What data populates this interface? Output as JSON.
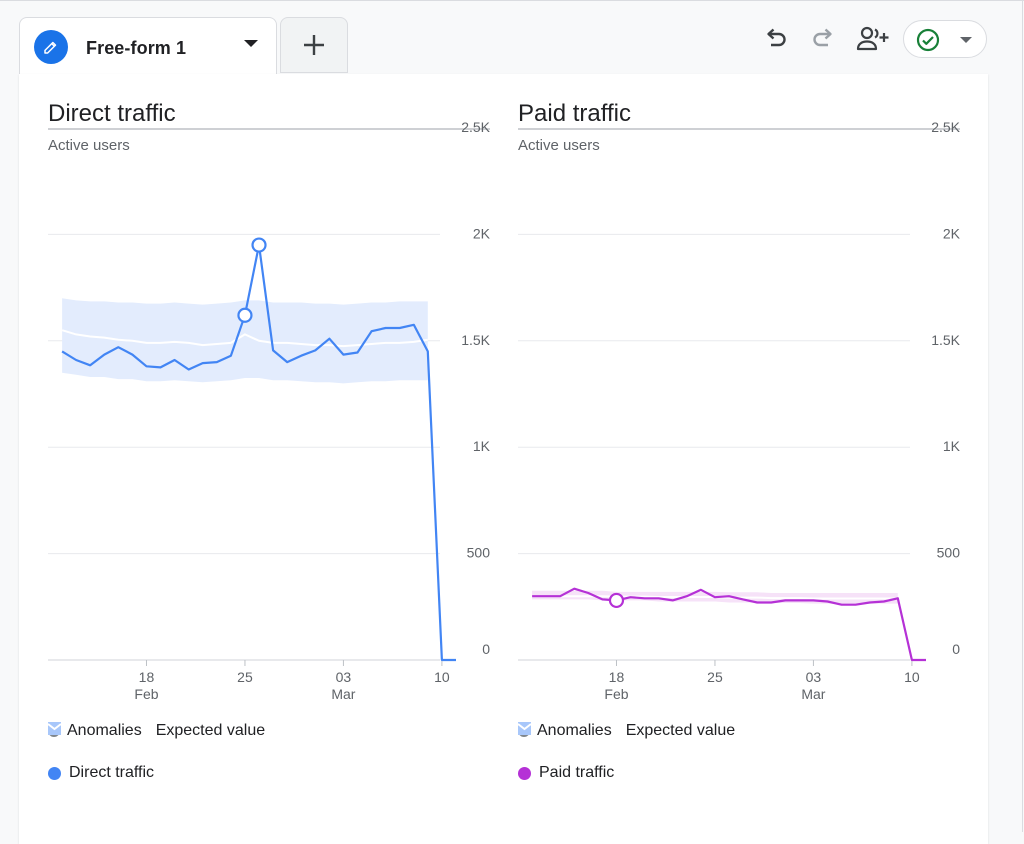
{
  "tab": {
    "title": "Free-form 1",
    "icon": "pencil-icon",
    "add_icon": "plus-icon"
  },
  "toolbar": {
    "undo_icon": "undo-icon",
    "redo_icon": "redo-icon",
    "share_icon": "share-person-icon",
    "status_icon": "check-circle-icon"
  },
  "legend": {
    "anomalies": "Anomalies",
    "expected": "Expected value"
  },
  "colors": {
    "direct": "#4285f4",
    "paid": "#b531d6",
    "direct_band": "#e3ecfd",
    "paid_band": "#f6e2f8",
    "accent": "#1a73e8",
    "status_green": "#188038"
  },
  "charts": [
    {
      "title": "Direct traffic",
      "subtitle": "Active users",
      "series_label": "Direct traffic"
    },
    {
      "title": "Paid traffic",
      "subtitle": "Active users",
      "series_label": "Paid traffic"
    }
  ],
  "chart_data": [
    {
      "type": "line",
      "title": "Direct traffic",
      "subtitle": "Active users",
      "ylim": [
        0,
        2500
      ],
      "yticks": [
        "0",
        "500",
        "1K",
        "1.5K",
        "2K",
        "2.5K"
      ],
      "xticks": [
        {
          "x": 18,
          "label": "18",
          "sub": "Feb"
        },
        {
          "x": 25,
          "label": "25",
          "sub": ""
        },
        {
          "x": 32,
          "label": "03",
          "sub": "Mar"
        },
        {
          "x": 39,
          "label": "10",
          "sub": ""
        }
      ],
      "grid": true,
      "legend_position": "bottom",
      "x": [
        12,
        13,
        14,
        15,
        16,
        17,
        18,
        19,
        20,
        21,
        22,
        23,
        24,
        25,
        26,
        27,
        28,
        29,
        30,
        31,
        32,
        33,
        34,
        35,
        36,
        37,
        38,
        39,
        40
      ],
      "series": [
        {
          "name": "Direct traffic",
          "color": "#4285f4",
          "values": [
            1450,
            1410,
            1385,
            1435,
            1470,
            1435,
            1380,
            1375,
            1410,
            1365,
            1395,
            1400,
            1430,
            1620,
            1950,
            1455,
            1400,
            1430,
            1455,
            1510,
            1435,
            1445,
            1545,
            1560,
            1560,
            1575,
            1450,
            0,
            0
          ]
        }
      ],
      "expected": {
        "upper": [
          1700,
          1690,
          1685,
          1685,
          1680,
          1680,
          1675,
          1675,
          1680,
          1675,
          1670,
          1675,
          1680,
          1690,
          1690,
          1680,
          1680,
          1680,
          1675,
          1675,
          1670,
          1675,
          1680,
          1680,
          1685,
          1685,
          1685
        ],
        "lower": [
          1350,
          1340,
          1330,
          1330,
          1320,
          1320,
          1310,
          1310,
          1315,
          1310,
          1305,
          1310,
          1315,
          1325,
          1325,
          1315,
          1315,
          1310,
          1305,
          1305,
          1300,
          1305,
          1310,
          1310,
          1315,
          1315,
          1315
        ],
        "mid": [
          1550,
          1530,
          1520,
          1515,
          1505,
          1500,
          1490,
          1490,
          1495,
          1490,
          1480,
          1485,
          1490,
          1530,
          1500,
          1490,
          1490,
          1485,
          1480,
          1480,
          1475,
          1480,
          1485,
          1490,
          1490,
          1495,
          1505
        ]
      },
      "anomalies": [
        {
          "x": 25,
          "y": 1620
        },
        {
          "x": 26,
          "y": 1950
        }
      ]
    },
    {
      "type": "line",
      "title": "Paid traffic",
      "subtitle": "Active users",
      "ylim": [
        0,
        2500
      ],
      "yticks": [
        "0",
        "500",
        "1K",
        "1.5K",
        "2K",
        "2.5K"
      ],
      "xticks": [
        {
          "x": 18,
          "label": "18",
          "sub": "Feb"
        },
        {
          "x": 25,
          "label": "25",
          "sub": ""
        },
        {
          "x": 32,
          "label": "03",
          "sub": "Mar"
        },
        {
          "x": 39,
          "label": "10",
          "sub": ""
        }
      ],
      "grid": true,
      "legend_position": "bottom",
      "x": [
        12,
        13,
        14,
        15,
        16,
        17,
        18,
        19,
        20,
        21,
        22,
        23,
        24,
        25,
        26,
        27,
        28,
        29,
        30,
        31,
        32,
        33,
        34,
        35,
        36,
        37,
        38,
        39,
        40
      ],
      "series": [
        {
          "name": "Paid traffic",
          "color": "#b531d6",
          "values": [
            300,
            300,
            300,
            335,
            315,
            285,
            280,
            295,
            290,
            290,
            280,
            300,
            330,
            295,
            300,
            285,
            270,
            270,
            280,
            280,
            280,
            275,
            260,
            260,
            270,
            275,
            290,
            0,
            0
          ]
        }
      ],
      "expected": {
        "upper": [
          325,
          325,
          325,
          325,
          325,
          325,
          320,
          320,
          320,
          320,
          320,
          320,
          320,
          320,
          318,
          318,
          318,
          315,
          315,
          315,
          315,
          315,
          315,
          315,
          315,
          315,
          315
        ],
        "lower": [
          285,
          285,
          285,
          285,
          285,
          280,
          280,
          280,
          280,
          275,
          275,
          275,
          275,
          275,
          270,
          270,
          270,
          268,
          268,
          268,
          265,
          265,
          265,
          265,
          265,
          265,
          265
        ],
        "mid": [
          300,
          300,
          300,
          300,
          300,
          300,
          298,
          298,
          298,
          296,
          296,
          296,
          296,
          296,
          293,
          293,
          293,
          291,
          291,
          291,
          289,
          289,
          289,
          289,
          289,
          289,
          289
        ]
      },
      "anomalies": [
        {
          "x": 18,
          "y": 280
        }
      ]
    }
  ]
}
